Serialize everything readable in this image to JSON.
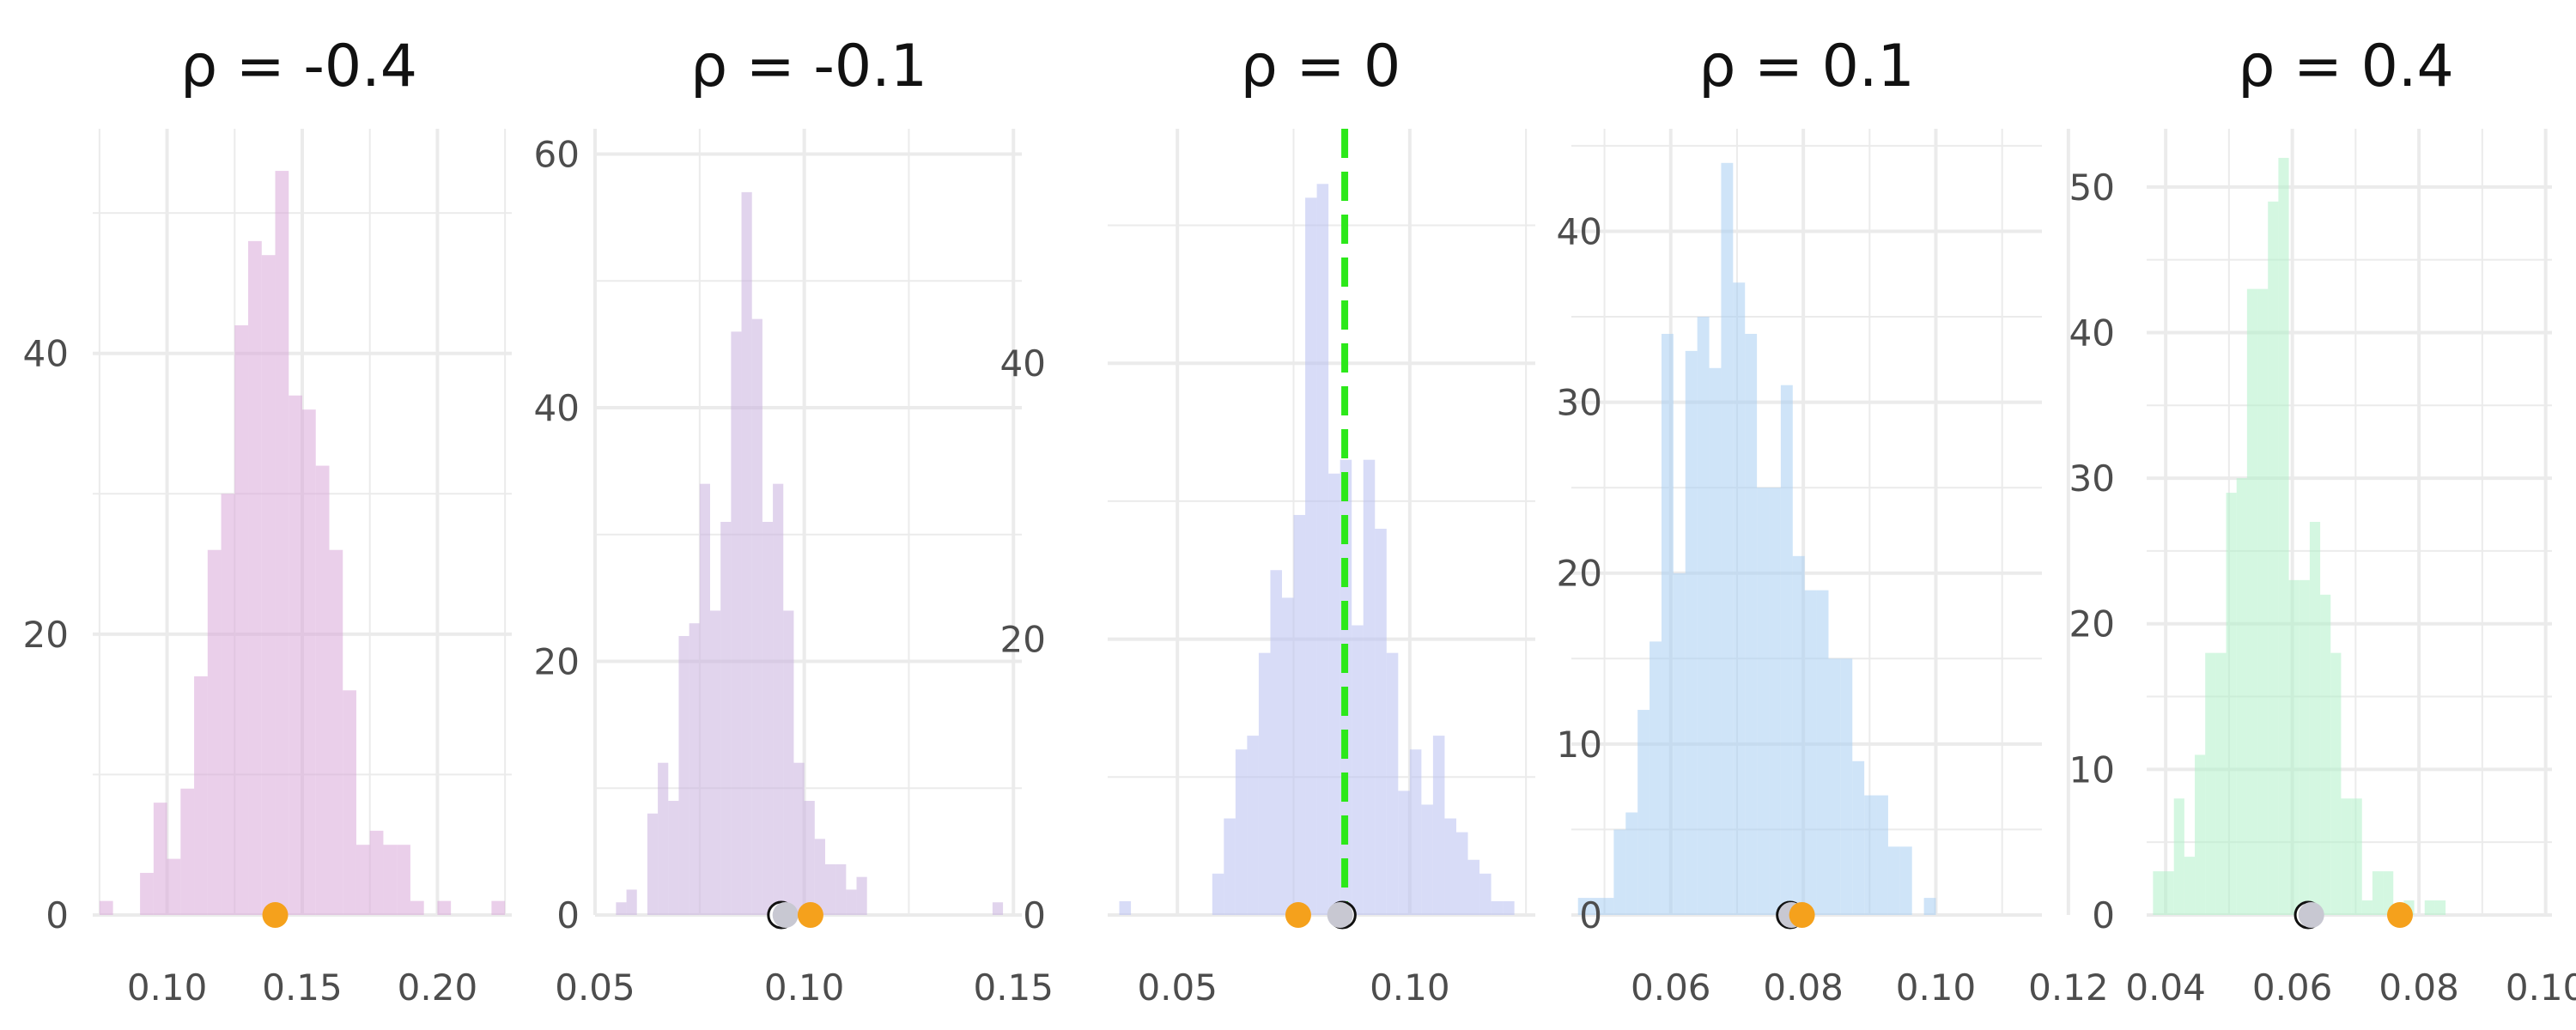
{
  "chart_data": [
    {
      "type": "histogram",
      "title": "ρ =  -0.4",
      "fill_color": "#d8a8d8",
      "xlim": [
        0.0725,
        0.2275
      ],
      "ylim": [
        0,
        56
      ],
      "xticks": [
        0.1,
        0.15,
        0.2
      ],
      "xtick_labels": [
        "0.10",
        "0.15",
        "0.20"
      ],
      "yticks": [
        0,
        20,
        40
      ],
      "ytick_labels": [
        "0",
        "20",
        "40"
      ],
      "bin_start": 0.075,
      "bin_width": 0.005,
      "counts": [
        1,
        0,
        0,
        3,
        8,
        4,
        9,
        17,
        26,
        30,
        42,
        48,
        47,
        53,
        37,
        36,
        32,
        26,
        16,
        5,
        6,
        5,
        5,
        1,
        0,
        1,
        0,
        0,
        0,
        1
      ],
      "points": [
        {
          "x": 0.14,
          "y": 0,
          "color": "#f5a11c"
        }
      ],
      "vline": null
    },
    {
      "type": "histogram",
      "title": "ρ =  -0.1",
      "fill_color": "#c8b0de",
      "xlim": [
        0.05,
        0.152
      ],
      "ylim": [
        0,
        62
      ],
      "xticks": [
        0.05,
        0.1,
        0.15
      ],
      "xtick_labels": [
        "0.05",
        "0.10",
        "0.15"
      ],
      "yticks": [
        0,
        20,
        40,
        60
      ],
      "ytick_labels": [
        "0",
        "20",
        "40",
        "60"
      ],
      "bin_start": 0.055,
      "bin_width": 0.0025,
      "counts": [
        1,
        2,
        0,
        8,
        12,
        9,
        22,
        23,
        34,
        24,
        31,
        46,
        57,
        47,
        31,
        34,
        24,
        12,
        9,
        6,
        4,
        4,
        2,
        3,
        0,
        0,
        0,
        0,
        0,
        0,
        0,
        0,
        0,
        0,
        0,
        0,
        1
      ],
      "points": [
        {
          "x": 0.0945,
          "y": 0,
          "color": "#ffffff",
          "outline": "#111111"
        },
        {
          "x": 0.0955,
          "y": 0,
          "color": "#c8c8d2"
        },
        {
          "x": 0.1015,
          "y": 0,
          "color": "#f5a11c"
        }
      ],
      "vline": null
    },
    {
      "type": "histogram",
      "title": "ρ =  0",
      "fill_color": "#b8c0f0",
      "xlim": [
        0.035,
        0.127
      ],
      "ylim": [
        0,
        57
      ],
      "xticks": [
        0.05,
        0.1
      ],
      "xtick_labels": [
        "0.05",
        "0.10"
      ],
      "yticks": [
        0,
        20,
        40
      ],
      "ytick_labels": [
        "0",
        "20",
        "40"
      ],
      "bin_start": 0.0375,
      "bin_width": 0.0025,
      "counts": [
        1,
        0,
        0,
        0,
        0,
        0,
        0,
        0,
        3,
        7,
        12,
        13,
        19,
        25,
        23,
        29,
        52,
        53,
        32,
        33,
        21,
        33,
        28,
        19,
        9,
        12,
        8,
        13,
        7,
        6,
        4,
        3,
        1,
        1
      ],
      "points": [
        {
          "x": 0.076,
          "y": 0,
          "color": "#f5a11c"
        },
        {
          "x": 0.0855,
          "y": 0,
          "color": "#ffffff",
          "outline": "#111111"
        },
        {
          "x": 0.085,
          "y": 0,
          "color": "#c8c8d2"
        }
      ],
      "vline": {
        "x": 0.086,
        "color": "#2ce81a",
        "style": "dashed"
      }
    },
    {
      "type": "histogram",
      "title": "ρ =  0.1",
      "fill_color": "#a8cef2",
      "xlim": [
        0.045,
        0.116
      ],
      "ylim": [
        0,
        46
      ],
      "xticks": [
        0.06,
        0.08,
        0.1,
        0.12
      ],
      "xtick_labels": [
        "0.06",
        "0.08",
        "0.10",
        "0.12"
      ],
      "yticks": [
        0,
        10,
        20,
        30,
        40
      ],
      "ytick_labels": [
        "0",
        "10",
        "20",
        "30",
        "40"
      ],
      "bin_start": 0.046,
      "bin_width": 0.0018,
      "counts": [
        1,
        1,
        1,
        5,
        6,
        12,
        16,
        34,
        20,
        33,
        35,
        32,
        44,
        37,
        34,
        25,
        25,
        31,
        21,
        19,
        19,
        15,
        15,
        9,
        7,
        7,
        4,
        4,
        0,
        1
      ],
      "points": [
        {
          "x": 0.078,
          "y": 0,
          "color": "#ffffff",
          "outline": "#111111"
        },
        {
          "x": 0.0782,
          "y": 0,
          "color": "#c8c8d2"
        },
        {
          "x": 0.0798,
          "y": 0,
          "color": "#f5a11c"
        }
      ],
      "vline": null
    },
    {
      "type": "histogram",
      "title": "ρ =  0.4",
      "fill_color": "#b0f0c8",
      "xlim": [
        0.037,
        0.101
      ],
      "ylim": [
        0,
        54
      ],
      "xticks": [
        0.04,
        0.06,
        0.08,
        0.1
      ],
      "xtick_labels": [
        "0.04",
        "0.06",
        "0.08",
        "0.10"
      ],
      "yticks": [
        0,
        10,
        20,
        30,
        40,
        50
      ],
      "ytick_labels": [
        "0",
        "10",
        "20",
        "30",
        "40",
        "50"
      ],
      "bin_start": 0.038,
      "bin_width": 0.00165,
      "counts": [
        3,
        3,
        8,
        4,
        11,
        18,
        18,
        29,
        30,
        43,
        43,
        49,
        52,
        23,
        23,
        27,
        22,
        18,
        8,
        8,
        1,
        3,
        3,
        0,
        1,
        0,
        1,
        1
      ],
      "points": [
        {
          "x": 0.0625,
          "y": 0,
          "color": "#ffffff",
          "outline": "#111111"
        },
        {
          "x": 0.063,
          "y": 0,
          "color": "#c8c8d2"
        },
        {
          "x": 0.077,
          "y": 0,
          "color": "#f5a11c"
        }
      ],
      "vline": null
    }
  ]
}
